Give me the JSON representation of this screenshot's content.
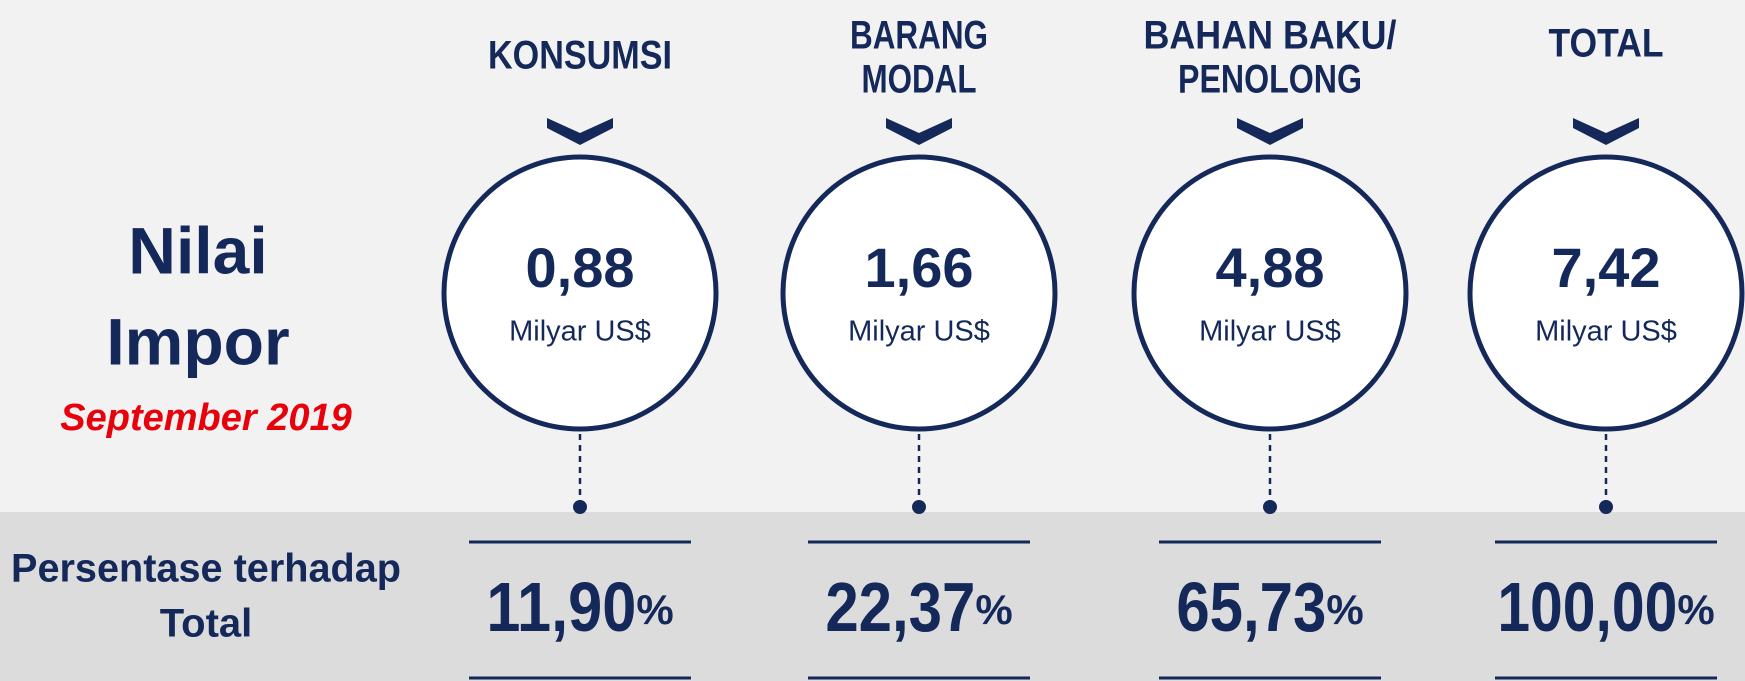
{
  "left": {
    "title_lines": [
      "Nilai",
      "Impor"
    ],
    "period": "September 2019",
    "percent_caption_lines": [
      "Persentase terhadap",
      "Total"
    ]
  },
  "columns": [
    {
      "label_lines": [
        "KONSUMSI"
      ],
      "value": "0,88",
      "unit": "Milyar US$",
      "percent": "11,90",
      "percent_sign": "%"
    },
    {
      "label_lines": [
        "BARANG",
        "MODAL"
      ],
      "value": "1,66",
      "unit": "Milyar US$",
      "percent": "22,37",
      "percent_sign": "%"
    },
    {
      "label_lines": [
        "BAHAN BAKU/",
        "PENOLONG"
      ],
      "value": "4,88",
      "unit": "Milyar US$",
      "percent": "65,73",
      "percent_sign": "%"
    },
    {
      "label_lines": [
        "TOTAL"
      ],
      "value": "7,42",
      "unit": "Milyar US$",
      "percent": "100,00",
      "percent_sign": "%"
    }
  ]
}
